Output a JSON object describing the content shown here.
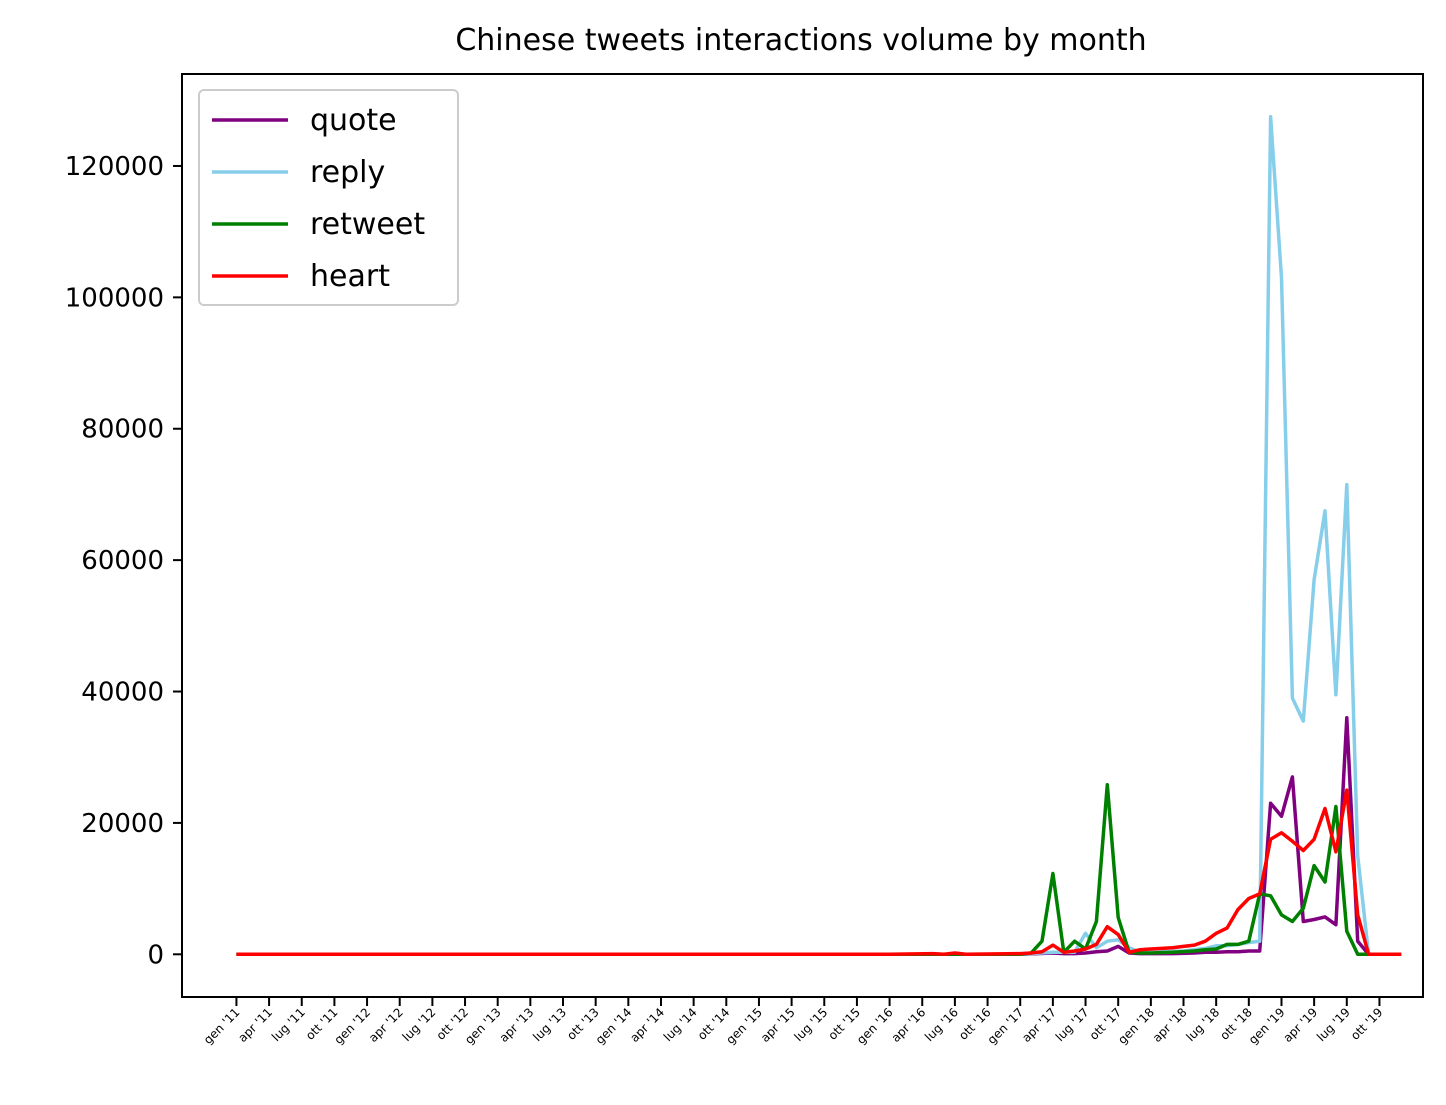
{
  "chart_data": {
    "type": "line",
    "title": "Chinese tweets interactions volume by month",
    "xlabel": "",
    "ylabel": "",
    "x_tick_labels": [
      "gen '11",
      "apr '11",
      "lug '11",
      "ott '11",
      "gen '12",
      "apr '12",
      "lug '12",
      "ott '12",
      "gen '13",
      "apr '13",
      "lug '13",
      "ott '13",
      "gen '14",
      "apr '14",
      "lug '14",
      "ott '14",
      "gen '15",
      "apr '15",
      "lug '15",
      "ott '15",
      "gen '16",
      "apr '16",
      "lug '16",
      "ott '16",
      "gen '17",
      "apr '17",
      "lug '17",
      "ott '17",
      "gen '18",
      "apr '18",
      "lug '18",
      "ott '18",
      "gen '19",
      "apr '19",
      "lug '19",
      "ott '19"
    ],
    "y_ticks": [
      0,
      20000,
      40000,
      60000,
      80000,
      100000,
      120000
    ],
    "y_tick_labels": [
      "0",
      "20000",
      "40000",
      "60000",
      "80000",
      "100000",
      "120000"
    ],
    "ylim": [
      -6500,
      134000
    ],
    "xlim": [
      "2010-08",
      "2020-02"
    ],
    "grid": false,
    "legend_position": "top-left",
    "series": [
      {
        "name": "quote",
        "color": "#800080",
        "points": [
          [
            "2011-01",
            0
          ],
          [
            "2017-01",
            0
          ],
          [
            "2017-04",
            200
          ],
          [
            "2017-05",
            100
          ],
          [
            "2017-06",
            100
          ],
          [
            "2017-07",
            200
          ],
          [
            "2017-08",
            400
          ],
          [
            "2017-09",
            500
          ],
          [
            "2017-10",
            1200
          ],
          [
            "2017-11",
            200
          ],
          [
            "2017-12",
            100
          ],
          [
            "2018-01",
            100
          ],
          [
            "2018-03",
            100
          ],
          [
            "2018-05",
            200
          ],
          [
            "2018-06",
            300
          ],
          [
            "2018-07",
            300
          ],
          [
            "2018-08",
            400
          ],
          [
            "2018-09",
            400
          ],
          [
            "2018-10",
            500
          ],
          [
            "2018-11",
            500
          ],
          [
            "2018-12",
            23000
          ],
          [
            "2019-01",
            21000
          ],
          [
            "2019-02",
            27000
          ],
          [
            "2019-03",
            5000
          ],
          [
            "2019-04",
            5300
          ],
          [
            "2019-05",
            5700
          ],
          [
            "2019-06",
            4500
          ],
          [
            "2019-07",
            36000
          ],
          [
            "2019-08",
            2000
          ],
          [
            "2019-09",
            0
          ],
          [
            "2019-12",
            0
          ]
        ]
      },
      {
        "name": "reply",
        "color": "#87ceeb",
        "points": [
          [
            "2011-01",
            0
          ],
          [
            "2017-01",
            0
          ],
          [
            "2017-04",
            300
          ],
          [
            "2017-05",
            300
          ],
          [
            "2017-06",
            300
          ],
          [
            "2017-07",
            3200
          ],
          [
            "2017-08",
            1000
          ],
          [
            "2017-09",
            2000
          ],
          [
            "2017-10",
            2200
          ],
          [
            "2017-11",
            1000
          ],
          [
            "2017-12",
            300
          ],
          [
            "2018-01",
            300
          ],
          [
            "2018-04",
            500
          ],
          [
            "2018-06",
            900
          ],
          [
            "2018-07",
            1300
          ],
          [
            "2018-08",
            1300
          ],
          [
            "2018-09",
            1500
          ],
          [
            "2018-10",
            1800
          ],
          [
            "2018-11",
            2000
          ],
          [
            "2018-12",
            127500
          ],
          [
            "2019-01",
            103000
          ],
          [
            "2019-02",
            39000
          ],
          [
            "2019-03",
            35500
          ],
          [
            "2019-04",
            57000
          ],
          [
            "2019-05",
            67500
          ],
          [
            "2019-06",
            39500
          ],
          [
            "2019-07",
            71500
          ],
          [
            "2019-08",
            15000
          ],
          [
            "2019-09",
            0
          ],
          [
            "2019-12",
            0
          ]
        ]
      },
      {
        "name": "retweet",
        "color": "#008000",
        "points": [
          [
            "2011-01",
            0
          ],
          [
            "2017-01",
            0
          ],
          [
            "2017-02",
            200
          ],
          [
            "2017-03",
            2000
          ],
          [
            "2017-04",
            12300
          ],
          [
            "2017-05",
            300
          ],
          [
            "2017-06",
            2000
          ],
          [
            "2017-07",
            800
          ],
          [
            "2017-08",
            5000
          ],
          [
            "2017-09",
            25800
          ],
          [
            "2017-10",
            5600
          ],
          [
            "2017-11",
            300
          ],
          [
            "2017-12",
            200
          ],
          [
            "2018-01",
            200
          ],
          [
            "2018-03",
            300
          ],
          [
            "2018-05",
            500
          ],
          [
            "2018-06",
            700
          ],
          [
            "2018-07",
            800
          ],
          [
            "2018-08",
            1500
          ],
          [
            "2018-09",
            1500
          ],
          [
            "2018-10",
            2000
          ],
          [
            "2018-11",
            9200
          ],
          [
            "2018-12",
            8900
          ],
          [
            "2019-01",
            6000
          ],
          [
            "2019-02",
            5000
          ],
          [
            "2019-03",
            7000
          ],
          [
            "2019-04",
            13500
          ],
          [
            "2019-05",
            11000
          ],
          [
            "2019-06",
            22500
          ],
          [
            "2019-07",
            3500
          ],
          [
            "2019-08",
            0
          ],
          [
            "2019-12",
            0
          ]
        ]
      },
      {
        "name": "heart",
        "color": "#ff0000",
        "points": [
          [
            "2011-01",
            0
          ],
          [
            "2016-01",
            0
          ],
          [
            "2016-05",
            100
          ],
          [
            "2016-06",
            0
          ],
          [
            "2016-07",
            200
          ],
          [
            "2016-08",
            0
          ],
          [
            "2017-01",
            100
          ],
          [
            "2017-02",
            200
          ],
          [
            "2017-03",
            400
          ],
          [
            "2017-04",
            1400
          ],
          [
            "2017-05",
            300
          ],
          [
            "2017-06",
            500
          ],
          [
            "2017-07",
            800
          ],
          [
            "2017-08",
            1500
          ],
          [
            "2017-09",
            4200
          ],
          [
            "2017-10",
            3000
          ],
          [
            "2017-11",
            300
          ],
          [
            "2017-12",
            700
          ],
          [
            "2018-01",
            800
          ],
          [
            "2018-02",
            900
          ],
          [
            "2018-03",
            1000
          ],
          [
            "2018-04",
            1200
          ],
          [
            "2018-05",
            1400
          ],
          [
            "2018-06",
            2000
          ],
          [
            "2018-07",
            3200
          ],
          [
            "2018-08",
            4000
          ],
          [
            "2018-09",
            6800
          ],
          [
            "2018-10",
            8500
          ],
          [
            "2018-11",
            9200
          ],
          [
            "2018-12",
            17500
          ],
          [
            "2019-01",
            18500
          ],
          [
            "2019-02",
            17200
          ],
          [
            "2019-03",
            15800
          ],
          [
            "2019-04",
            17500
          ],
          [
            "2019-05",
            22200
          ],
          [
            "2019-06",
            15600
          ],
          [
            "2019-07",
            25000
          ],
          [
            "2019-08",
            6000
          ],
          [
            "2019-09",
            0
          ],
          [
            "2019-12",
            0
          ]
        ]
      }
    ]
  }
}
